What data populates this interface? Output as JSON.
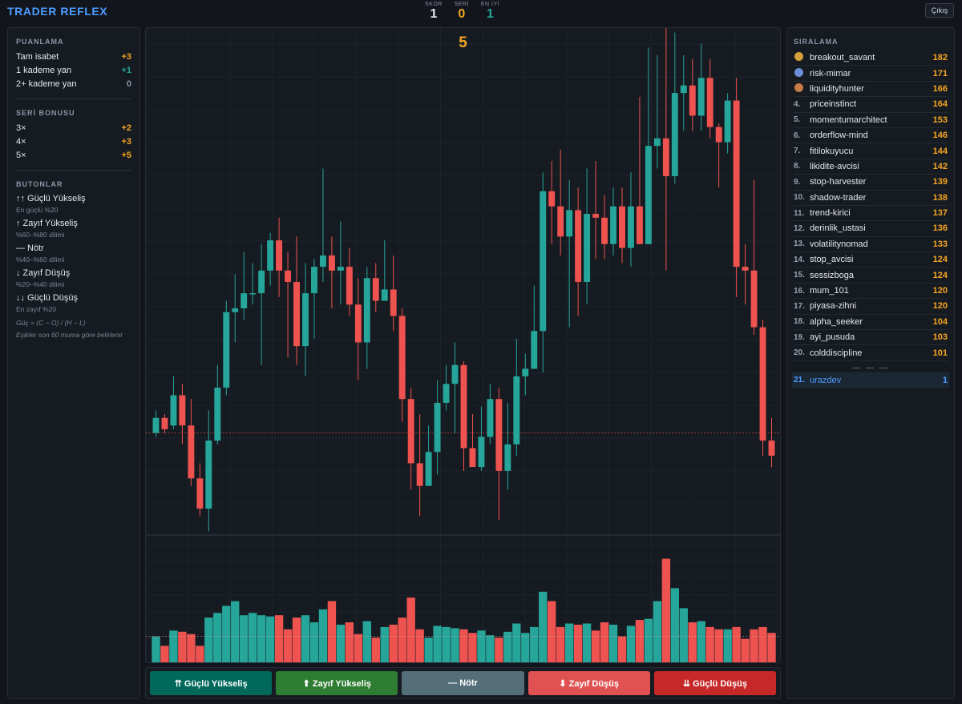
{
  "app": {
    "title": "TRADER REFLEX",
    "exit_label": "Çıkış"
  },
  "stats": [
    {
      "label": "SKOR",
      "value": "1",
      "color": "#e3e7ee"
    },
    {
      "label": "SERİ",
      "value": "0",
      "color": "#f5a623"
    },
    {
      "label": "EN İYİ",
      "value": "1",
      "color": "#26a69a"
    }
  ],
  "scoring": {
    "title": "PUANLAMA",
    "rows": [
      {
        "label": "Tam isabet",
        "points": "+3",
        "color": "#f5a623"
      },
      {
        "label": "1 kademe yan",
        "points": "+1",
        "color": "#26a69a"
      },
      {
        "label": "2+ kademe yan",
        "points": "0",
        "color": "#8a93a3"
      }
    ]
  },
  "streak": {
    "title": "SERİ BONUSU",
    "rows": [
      {
        "label": "3×",
        "points": "+2"
      },
      {
        "label": "4×",
        "points": "+3"
      },
      {
        "label": "5×",
        "points": "+5"
      }
    ]
  },
  "buttons_info": {
    "title": "BUTONLAR",
    "items": [
      {
        "label": "↑↑ Güçlü Yükseliş",
        "sub": "En güçlü %20"
      },
      {
        "label": "↑ Zayıf Yükseliş",
        "sub": "%60–%80 dilimi"
      },
      {
        "label": "— Nötr",
        "sub": "%40–%60 dilimi"
      },
      {
        "label": "↓ Zayıf Düşüş",
        "sub": "%20–%40 dilimi"
      },
      {
        "label": "↓↓ Güçlü Düşüş",
        "sub": "En zayıf %20"
      }
    ],
    "formula": "Güç = (C − O) / (H − L)",
    "note": "Eşikler son 60 muma göre belirlenir"
  },
  "countdown": "5",
  "chart_data": {
    "type": "candlestick",
    "colors": {
      "up": "#26a69a",
      "down": "#ef5350"
    },
    "price_range": [
      80,
      186
    ],
    "reference_price": 100,
    "volume_max": 100,
    "candles": [
      [
        100,
        104,
        106,
        99,
        22
      ],
      [
        104,
        101,
        105,
        100,
        14
      ],
      [
        102,
        110,
        115,
        101,
        27
      ],
      [
        110,
        102,
        113,
        97,
        26
      ],
      [
        102,
        88,
        109,
        86,
        24
      ],
      [
        88,
        80,
        92,
        78,
        14
      ],
      [
        80,
        98,
        106,
        74,
        38
      ],
      [
        98,
        112,
        118,
        97,
        42
      ],
      [
        112,
        132,
        135,
        110,
        48
      ],
      [
        132,
        133,
        142,
        124,
        52
      ],
      [
        133,
        137,
        148,
        130,
        40
      ],
      [
        137,
        137,
        145,
        134,
        42
      ],
      [
        137,
        143,
        150,
        118,
        40
      ],
      [
        143,
        151,
        153,
        139,
        39
      ],
      [
        151,
        143,
        157,
        136,
        40
      ],
      [
        143,
        140,
        148,
        120,
        28
      ],
      [
        140,
        123,
        152,
        118,
        38
      ],
      [
        123,
        137,
        145,
        115,
        40
      ],
      [
        137,
        144,
        146,
        125,
        34
      ],
      [
        144,
        147,
        170,
        140,
        45
      ],
      [
        147,
        143,
        152,
        133,
        52
      ],
      [
        143,
        144,
        156,
        134,
        32
      ],
      [
        144,
        134,
        149,
        131,
        34
      ],
      [
        134,
        124,
        141,
        114,
        24
      ],
      [
        124,
        141,
        144,
        117,
        35
      ],
      [
        141,
        135,
        145,
        132,
        21
      ],
      [
        135,
        138,
        151,
        137,
        30
      ],
      [
        138,
        131,
        147,
        127,
        32
      ],
      [
        131,
        109,
        133,
        103,
        38
      ],
      [
        109,
        92,
        112,
        85,
        55
      ],
      [
        92,
        86,
        105,
        78,
        28
      ],
      [
        86,
        95,
        102,
        90,
        21
      ],
      [
        95,
        108,
        114,
        89,
        31
      ],
      [
        108,
        113,
        118,
        106,
        30
      ],
      [
        113,
        118,
        124,
        100,
        29
      ],
      [
        118,
        96,
        119,
        90,
        28
      ],
      [
        96,
        91,
        105,
        93,
        25
      ],
      [
        91,
        99,
        107,
        90,
        27
      ],
      [
        99,
        109,
        113,
        97,
        23
      ],
      [
        109,
        90,
        112,
        77,
        21
      ],
      [
        90,
        97,
        108,
        85,
        26
      ],
      [
        97,
        115,
        125,
        94,
        33
      ],
      [
        115,
        117,
        121,
        110,
        25
      ],
      [
        117,
        127,
        139,
        125,
        30
      ],
      [
        127,
        164,
        169,
        116,
        60
      ],
      [
        164,
        160,
        172,
        150,
        52
      ],
      [
        160,
        152,
        175,
        147,
        30
      ],
      [
        152,
        159,
        167,
        128,
        33
      ],
      [
        159,
        140,
        165,
        131,
        32
      ],
      [
        140,
        158,
        170,
        134,
        33
      ],
      [
        158,
        157,
        172,
        146,
        27
      ],
      [
        157,
        150,
        163,
        146,
        34
      ],
      [
        150,
        160,
        165,
        147,
        32
      ],
      [
        160,
        149,
        165,
        145,
        22
      ],
      [
        149,
        160,
        169,
        144,
        31
      ],
      [
        160,
        150,
        189,
        155,
        36
      ],
      [
        150,
        176,
        202,
        152,
        37
      ],
      [
        176,
        178,
        200,
        170,
        52
      ],
      [
        178,
        168,
        210,
        143,
        88
      ],
      [
        168,
        190,
        206,
        166,
        63
      ],
      [
        190,
        192,
        200,
        180,
        46
      ],
      [
        192,
        184,
        199,
        180,
        34
      ],
      [
        184,
        194,
        203,
        180,
        35
      ],
      [
        194,
        181,
        199,
        178,
        30
      ],
      [
        181,
        177,
        182,
        165,
        28
      ],
      [
        177,
        188,
        190,
        174,
        28
      ],
      [
        188,
        144,
        194,
        136,
        30
      ],
      [
        144,
        143,
        150,
        134,
        20
      ],
      [
        143,
        128,
        167,
        126,
        28
      ],
      [
        128,
        98,
        130,
        94,
        30
      ],
      [
        98,
        94,
        104,
        91,
        25
      ]
    ]
  },
  "answers": [
    {
      "label": "⇈ Güçlü Yükseliş",
      "color": "#00695c"
    },
    {
      "label": "⬆ Zayıf Yükseliş",
      "color": "#2e7d32"
    },
    {
      "label": "— Nötr",
      "color": "#546e7a"
    },
    {
      "label": "⬇ Zayıf Düşüş",
      "color": "#e05252"
    },
    {
      "label": "⇊ Güçlü Düşüş",
      "color": "#c62828"
    }
  ],
  "leaderboard": {
    "title": "SIRALAMA",
    "medal_colors": [
      "#d4a03a",
      "#6d8fd8",
      "#c77c45"
    ],
    "rows": [
      {
        "rank": "1.",
        "name": "breakout_savant",
        "score": "182"
      },
      {
        "rank": "2.",
        "name": "risk-mimar",
        "score": "171"
      },
      {
        "rank": "3.",
        "name": "liquidityhunter",
        "score": "166"
      },
      {
        "rank": "4.",
        "name": "priceinstinct",
        "score": "164"
      },
      {
        "rank": "5.",
        "name": "momentumarchitect",
        "score": "153"
      },
      {
        "rank": "6.",
        "name": "orderflow-mind",
        "score": "146"
      },
      {
        "rank": "7.",
        "name": "fitilokuyucu",
        "score": "144"
      },
      {
        "rank": "8.",
        "name": "likidite-avcisi",
        "score": "142"
      },
      {
        "rank": "9.",
        "name": "stop-harvester",
        "score": "139"
      },
      {
        "rank": "10.",
        "name": "shadow-trader",
        "score": "138"
      },
      {
        "rank": "11.",
        "name": "trend-kirici",
        "score": "137"
      },
      {
        "rank": "12.",
        "name": "derinlik_ustasi",
        "score": "136"
      },
      {
        "rank": "13.",
        "name": "volatilitynomad",
        "score": "133"
      },
      {
        "rank": "14.",
        "name": "stop_avcisi",
        "score": "124"
      },
      {
        "rank": "15.",
        "name": "sessizboga",
        "score": "124"
      },
      {
        "rank": "16.",
        "name": "mum_101",
        "score": "120"
      },
      {
        "rank": "17.",
        "name": "piyasa-zihni",
        "score": "120"
      },
      {
        "rank": "18.",
        "name": "alpha_seeker",
        "score": "104"
      },
      {
        "rank": "19.",
        "name": "ayi_pusuda",
        "score": "103"
      },
      {
        "rank": "20.",
        "name": "colddiscipline",
        "score": "101"
      }
    ],
    "separator": "— — —",
    "me": {
      "rank": "21.",
      "name": "urazdev",
      "score": "1"
    }
  }
}
